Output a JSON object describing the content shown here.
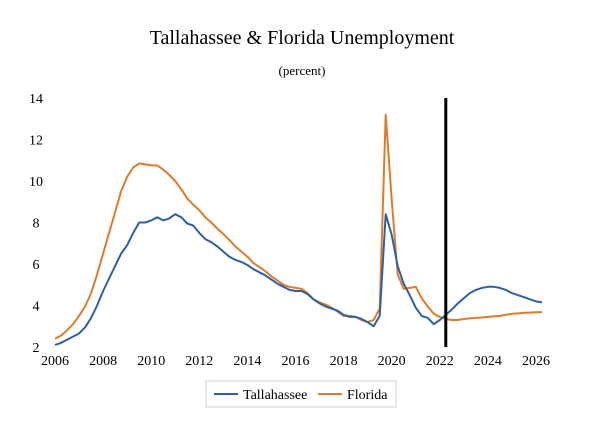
{
  "chart_data": {
    "type": "line",
    "title": "Tallahassee & Florida Unemployment",
    "subtitle": "(percent)",
    "xlabel": "",
    "ylabel": "",
    "xlim": [
      2006,
      2026.5
    ],
    "ylim": [
      2,
      14
    ],
    "x_ticks": [
      "2006",
      "2008",
      "2010",
      "2012",
      "2014",
      "2016",
      "2018",
      "2020",
      "2022",
      "2024",
      "2026"
    ],
    "y_ticks": [
      "2",
      "4",
      "6",
      "8",
      "10",
      "12",
      "14"
    ],
    "grid": false,
    "legend": "bottom",
    "forecast_marker": 2022.25,
    "colors": {
      "Tallahassee": "#2f5fa5",
      "Florida": "#e07b2a",
      "marker": "#000000"
    },
    "series": [
      {
        "name": "Tallahassee",
        "x": [
          2006,
          2006.25,
          2006.5,
          2006.75,
          2007,
          2007.25,
          2007.5,
          2007.75,
          2008,
          2008.25,
          2008.5,
          2008.75,
          2009,
          2009.25,
          2009.5,
          2009.75,
          2010,
          2010.25,
          2010.5,
          2010.75,
          2011,
          2011.25,
          2011.5,
          2011.75,
          2012,
          2012.25,
          2012.5,
          2012.75,
          2013,
          2013.25,
          2013.5,
          2013.75,
          2014,
          2014.25,
          2014.5,
          2014.75,
          2015,
          2015.25,
          2015.5,
          2015.75,
          2016,
          2016.25,
          2016.5,
          2016.75,
          2017,
          2017.25,
          2017.5,
          2017.75,
          2018,
          2018.25,
          2018.5,
          2018.75,
          2019,
          2019.25,
          2019.5,
          2019.75,
          2020,
          2020.25,
          2020.5,
          2020.75,
          2021,
          2021.25,
          2021.5,
          2021.75,
          2022,
          2022.25,
          2022.5,
          2022.75,
          2023,
          2023.25,
          2023.5,
          2023.75,
          2024,
          2024.25,
          2024.5,
          2024.75,
          2025,
          2025.25,
          2025.5,
          2025.75,
          2026,
          2026.25
        ],
        "values": [
          2.1,
          2.2,
          2.35,
          2.5,
          2.65,
          2.95,
          3.4,
          4.0,
          4.7,
          5.3,
          5.9,
          6.5,
          6.9,
          7.5,
          8.0,
          8.0,
          8.1,
          8.25,
          8.1,
          8.2,
          8.4,
          8.25,
          7.95,
          7.85,
          7.5,
          7.2,
          7.05,
          6.85,
          6.6,
          6.35,
          6.2,
          6.1,
          5.95,
          5.75,
          5.6,
          5.45,
          5.25,
          5.05,
          4.9,
          4.75,
          4.7,
          4.7,
          4.55,
          4.3,
          4.1,
          3.95,
          3.85,
          3.75,
          3.55,
          3.45,
          3.45,
          3.35,
          3.2,
          3.0,
          3.5,
          8.4,
          7.4,
          5.9,
          5.05,
          4.5,
          3.9,
          3.5,
          3.4,
          3.1,
          3.3,
          3.55,
          3.8,
          4.1,
          4.35,
          4.6,
          4.75,
          4.85,
          4.9,
          4.9,
          4.85,
          4.75,
          4.6,
          4.5,
          4.4,
          4.3,
          4.2,
          4.15
        ]
      },
      {
        "name": "Florida",
        "x": [
          2006,
          2006.25,
          2006.5,
          2006.75,
          2007,
          2007.25,
          2007.5,
          2007.75,
          2008,
          2008.25,
          2008.5,
          2008.75,
          2009,
          2009.25,
          2009.5,
          2009.75,
          2010,
          2010.25,
          2010.5,
          2010.75,
          2011,
          2011.25,
          2011.5,
          2011.75,
          2012,
          2012.25,
          2012.5,
          2012.75,
          2013,
          2013.25,
          2013.5,
          2013.75,
          2014,
          2014.25,
          2014.5,
          2014.75,
          2015,
          2015.25,
          2015.5,
          2015.75,
          2016,
          2016.25,
          2016.5,
          2016.75,
          2017,
          2017.25,
          2017.5,
          2017.75,
          2018,
          2018.25,
          2018.5,
          2018.75,
          2019,
          2019.25,
          2019.5,
          2019.75,
          2020,
          2020.25,
          2020.5,
          2020.75,
          2021,
          2021.25,
          2021.5,
          2021.75,
          2022,
          2022.25,
          2022.5,
          2022.75,
          2023,
          2023.25,
          2023.5,
          2023.75,
          2024,
          2024.25,
          2024.5,
          2024.75,
          2025,
          2025.25,
          2025.5,
          2025.75,
          2026,
          2026.25
        ],
        "values": [
          2.4,
          2.55,
          2.8,
          3.1,
          3.5,
          3.95,
          4.6,
          5.5,
          6.5,
          7.5,
          8.5,
          9.5,
          10.2,
          10.65,
          10.85,
          10.8,
          10.75,
          10.75,
          10.55,
          10.3,
          10.0,
          9.6,
          9.15,
          8.85,
          8.6,
          8.25,
          8.0,
          7.7,
          7.45,
          7.15,
          6.85,
          6.6,
          6.35,
          6.05,
          5.85,
          5.65,
          5.4,
          5.2,
          5.0,
          4.9,
          4.85,
          4.8,
          4.6,
          4.3,
          4.15,
          4.05,
          3.9,
          3.7,
          3.5,
          3.5,
          3.45,
          3.3,
          3.2,
          3.3,
          3.85,
          13.2,
          9.1,
          5.5,
          4.8,
          4.85,
          4.9,
          4.35,
          3.95,
          3.6,
          3.45,
          3.35,
          3.3,
          3.3,
          3.35,
          3.38,
          3.4,
          3.42,
          3.45,
          3.48,
          3.5,
          3.55,
          3.6,
          3.62,
          3.65,
          3.66,
          3.67,
          3.68
        ]
      }
    ]
  }
}
